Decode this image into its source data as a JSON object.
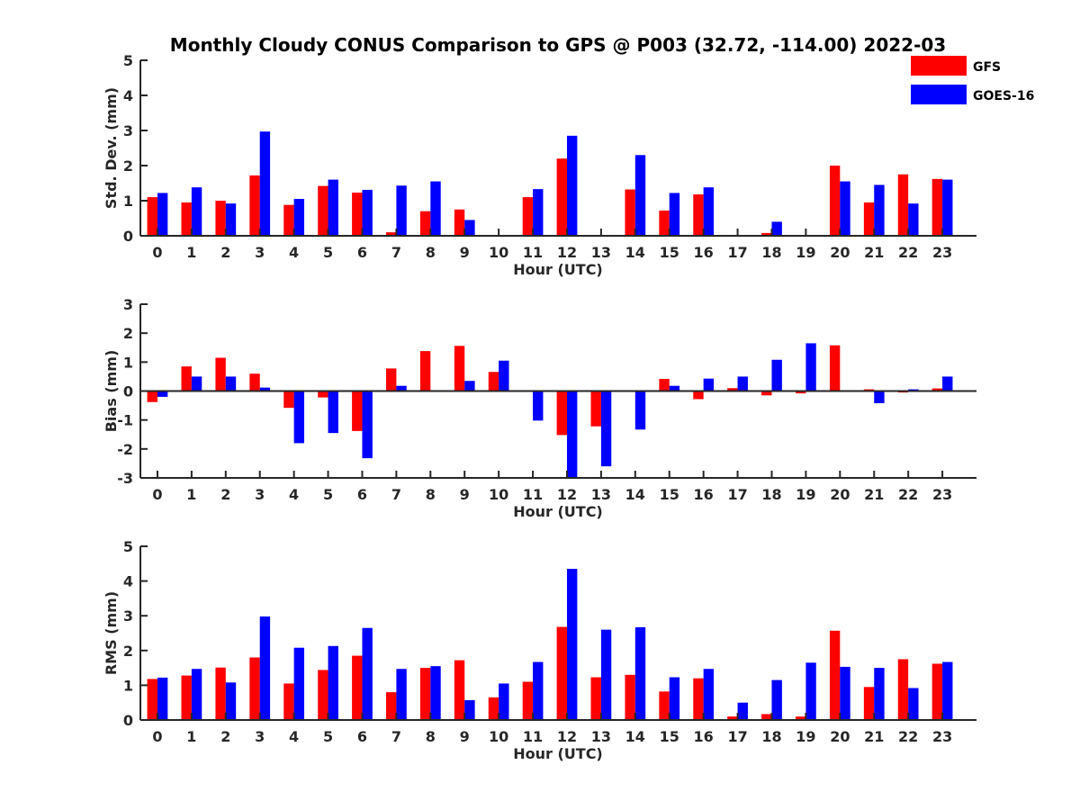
{
  "title": "Monthly Cloudy CONUS Comparison to GPS @ P003 (32.72, -114.00) 2022-03",
  "legend": {
    "placement": "top-right",
    "entries": [
      {
        "label": "GFS",
        "color": "#ff0000"
      },
      {
        "label": "GOES-16",
        "color": "#0000ff"
      }
    ]
  },
  "colors": {
    "GFS": "#ff0000",
    "GOES-16": "#0000ff",
    "axis": "#262626"
  },
  "chart_data": [
    {
      "type": "bar",
      "xlabel": "Hour (UTC)",
      "ylabel": "Std. Dev. (mm)",
      "ylim": [
        0,
        5
      ],
      "yticks": [
        "0",
        "1",
        "2",
        "3",
        "4",
        "5"
      ],
      "categories": [
        "0",
        "1",
        "2",
        "3",
        "4",
        "5",
        "6",
        "7",
        "8",
        "9",
        "10",
        "11",
        "12",
        "13",
        "14",
        "15",
        "16",
        "17",
        "18",
        "19",
        "20",
        "21",
        "22",
        "23"
      ],
      "series": [
        {
          "name": "GFS",
          "values": [
            1.1,
            0.95,
            1.0,
            1.72,
            0.88,
            1.42,
            1.23,
            0.1,
            0.7,
            0.75,
            0,
            1.1,
            2.2,
            0,
            1.32,
            0.72,
            1.18,
            0,
            0.08,
            0,
            2.0,
            0.95,
            1.75,
            1.62
          ]
        },
        {
          "name": "GOES-16",
          "values": [
            1.22,
            1.38,
            0.92,
            2.97,
            1.05,
            1.6,
            1.31,
            1.43,
            1.55,
            0.45,
            0,
            1.33,
            2.85,
            0,
            2.3,
            1.22,
            1.38,
            0,
            0.4,
            0,
            1.55,
            1.45,
            0.92,
            1.6
          ]
        }
      ]
    },
    {
      "type": "bar",
      "xlabel": "Hour (UTC)",
      "ylabel": "Bias (mm)",
      "ylim": [
        -3,
        3
      ],
      "yticks": [
        "-3",
        "-2",
        "-1",
        "0",
        "1",
        "2",
        "3"
      ],
      "categories": [
        "0",
        "1",
        "2",
        "3",
        "4",
        "5",
        "6",
        "7",
        "8",
        "9",
        "10",
        "11",
        "12",
        "13",
        "14",
        "15",
        "16",
        "17",
        "18",
        "19",
        "20",
        "21",
        "22",
        "23"
      ],
      "series": [
        {
          "name": "GFS",
          "values": [
            -0.38,
            0.85,
            1.15,
            0.6,
            -0.58,
            -0.22,
            -1.38,
            0.78,
            1.38,
            1.56,
            0.66,
            0,
            -1.52,
            -1.22,
            0.03,
            0.42,
            -0.28,
            0.1,
            -0.15,
            -0.08,
            1.58,
            0.06,
            -0.05,
            0.09
          ]
        },
        {
          "name": "GOES-16",
          "values": [
            -0.2,
            0.5,
            0.5,
            0.12,
            -1.8,
            -1.45,
            -2.32,
            0.18,
            0.03,
            0.35,
            1.05,
            -1.02,
            -3.0,
            -2.6,
            -1.33,
            0.18,
            0.43,
            0.5,
            1.08,
            1.65,
            0,
            -0.42,
            0.06,
            0.5
          ]
        }
      ]
    },
    {
      "type": "bar",
      "xlabel": "Hour (UTC)",
      "ylabel": "RMS (mm)",
      "ylim": [
        0,
        5
      ],
      "yticks": [
        "0",
        "1",
        "2",
        "3",
        "4",
        "5"
      ],
      "categories": [
        "0",
        "1",
        "2",
        "3",
        "4",
        "5",
        "6",
        "7",
        "8",
        "9",
        "10",
        "11",
        "12",
        "13",
        "14",
        "15",
        "16",
        "17",
        "18",
        "19",
        "20",
        "21",
        "22",
        "23"
      ],
      "series": [
        {
          "name": "GFS",
          "values": [
            1.18,
            1.28,
            1.51,
            1.8,
            1.05,
            1.44,
            1.85,
            0.8,
            1.5,
            1.72,
            0.65,
            1.1,
            2.68,
            1.23,
            1.3,
            0.82,
            1.2,
            0.1,
            0.17,
            0.1,
            2.57,
            0.95,
            1.75,
            1.62
          ]
        },
        {
          "name": "GOES-16",
          "values": [
            1.22,
            1.47,
            1.08,
            2.98,
            2.08,
            2.13,
            2.65,
            1.47,
            1.55,
            0.57,
            1.05,
            1.67,
            4.35,
            2.6,
            2.67,
            1.23,
            1.47,
            0.5,
            1.15,
            1.65,
            1.53,
            1.5,
            0.92,
            1.67
          ]
        }
      ]
    }
  ]
}
